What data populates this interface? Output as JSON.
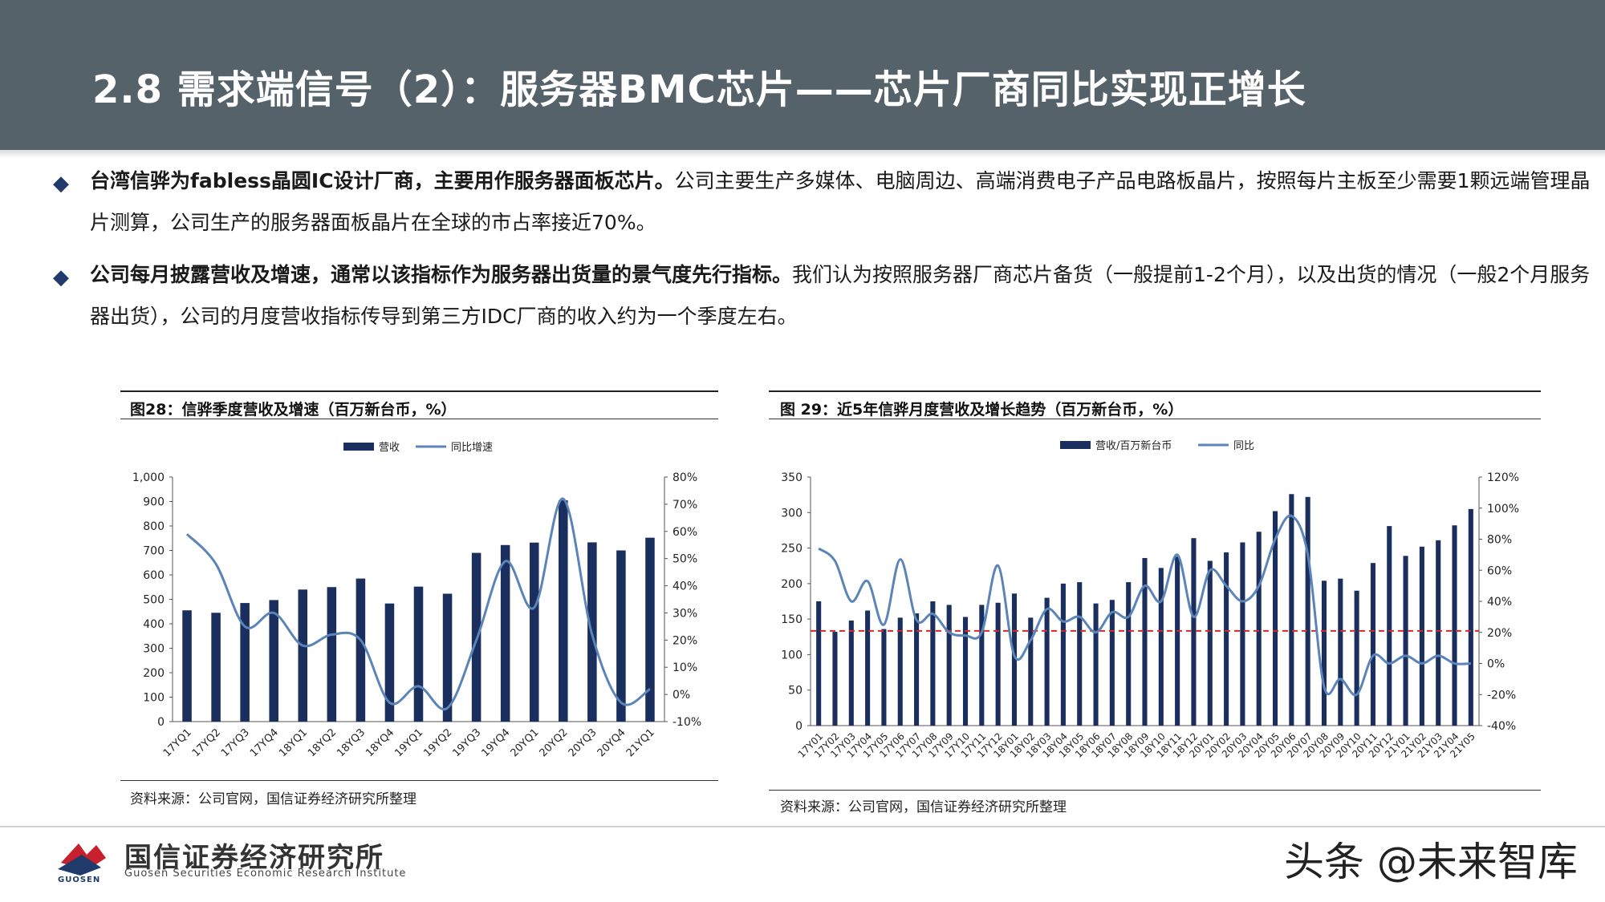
{
  "header": {
    "title": "2.8 需求端信号（2）：服务器BMC芯片——芯片厂商同比实现正增长"
  },
  "bullets": [
    {
      "bold": "台湾信骅为fabless晶圆IC设计厂商，主要用作服务器面板芯片。",
      "text": "公司主要生产多媒体、电脑周边、高端消费电子产品电路板晶片，按照每片主板至少需要1颗远端管理晶片测算，公司生产的服务器面板晶片在全球的市占率接近70%。"
    },
    {
      "bold": "公司每月披露营收及增速，通常以该指标作为服务器出货量的景气度先行指标。",
      "text": "我们认为按照服务器厂商芯片备货（一般提前1-2个月），以及出货的情况（一般2个月服务器出货），公司的月度营收指标传导到第三方IDC厂商的收入约为一个季度左右。"
    }
  ],
  "colors": {
    "header_bg": "#566269",
    "bar": "#1b2f5e",
    "line": "#5b84b8",
    "ref_line": "#d62828",
    "bullet": "#1f3a6b"
  },
  "figures": [
    {
      "title": "图28：信骅季度营收及增速（百万新台币，%）",
      "source": "资料来源：公司官网，国信证券经济研究所整理"
    },
    {
      "title": "图 29：近5年信骅月度营收及增长趋势（百万新台币，%）",
      "source": "资料来源：公司官网，国信证券经济研究所整理"
    }
  ],
  "chart_data": [
    {
      "type": "bar",
      "combo": "bar+line (dual axis)",
      "legend": [
        "营收",
        "同比增速"
      ],
      "legend_position": "top-center",
      "categories": [
        "17YQ1",
        "17YQ2",
        "17YQ3",
        "17YQ4",
        "18YQ1",
        "18YQ2",
        "18YQ3",
        "18YQ4",
        "19YQ1",
        "19YQ2",
        "19YQ3",
        "19YQ4",
        "20YQ1",
        "20YQ2",
        "20YQ3",
        "20YQ4",
        "21YQ1"
      ],
      "series": [
        {
          "name": "营收",
          "axis": "left",
          "type": "bar",
          "values": [
            455,
            445,
            485,
            497,
            540,
            550,
            585,
            483,
            552,
            523,
            690,
            722,
            732,
            905,
            733,
            700,
            752
          ]
        },
        {
          "name": "同比增速",
          "axis": "right",
          "type": "line",
          "values": [
            59,
            48,
            25,
            30,
            18,
            22,
            20,
            -3,
            3,
            -5,
            20,
            49,
            32,
            72,
            22,
            -3,
            2
          ]
        }
      ],
      "y_left": {
        "min": 0,
        "max": 1000,
        "ticks": [
          "0",
          "100",
          "200",
          "300",
          "400",
          "500",
          "600",
          "700",
          "800",
          "900",
          "1,000"
        ]
      },
      "y_right": {
        "min": -10,
        "max": 80,
        "ticks": [
          "-10%",
          "0%",
          "10%",
          "20%",
          "30%",
          "40%",
          "50%",
          "60%",
          "70%",
          "80%"
        ]
      },
      "grid": false
    },
    {
      "type": "bar",
      "combo": "bar+line (dual axis) with dashed reference line",
      "legend": [
        "营收/百万新台币",
        "同比"
      ],
      "legend_position": "top-center",
      "categories": [
        "17Y01",
        "17Y02",
        "17Y03",
        "17Y04",
        "17Y05",
        "17Y06",
        "17Y07",
        "17Y08",
        "17Y09",
        "17Y10",
        "17Y11",
        "17Y12",
        "18Y01",
        "18Y02",
        "18Y03",
        "18Y04",
        "18Y05",
        "18Y06",
        "18Y07",
        "18Y08",
        "18Y09",
        "18Y10",
        "18Y11",
        "18Y12",
        "20Y01",
        "20Y02",
        "20Y03",
        "20Y04",
        "20Y05",
        "20Y06",
        "20Y07",
        "20Y08",
        "20Y09",
        "20Y10",
        "20Y11",
        "20Y12",
        "21Y01",
        "21Y02",
        "21Y03",
        "21Y04",
        "21Y05"
      ],
      "series": [
        {
          "name": "营收/百万新台币",
          "axis": "left",
          "type": "bar",
          "values": [
            175,
            132,
            148,
            162,
            136,
            152,
            158,
            175,
            170,
            153,
            170,
            173,
            186,
            152,
            180,
            200,
            202,
            172,
            177,
            202,
            236,
            222,
            238,
            264,
            232,
            244,
            258,
            273,
            302,
            326,
            322,
            204,
            207,
            190,
            229,
            281,
            239,
            252,
            261,
            282,
            305
          ]
        },
        {
          "name": "同比",
          "axis": "right",
          "type": "line",
          "values": [
            74,
            66,
            40,
            53,
            25,
            67,
            28,
            32,
            20,
            18,
            20,
            63,
            5,
            15,
            35,
            27,
            30,
            20,
            33,
            30,
            50,
            40,
            70,
            30,
            60,
            50,
            40,
            50,
            80,
            95,
            70,
            -15,
            -10,
            -20,
            5,
            0,
            5,
            0,
            5,
            0,
            0
          ]
        }
      ],
      "reference_line": {
        "axis": "right",
        "value": 21,
        "style": "dashed"
      },
      "y_left": {
        "min": 0,
        "max": 350,
        "ticks": [
          "0",
          "50",
          "100",
          "150",
          "200",
          "250",
          "300",
          "350"
        ]
      },
      "y_right": {
        "min": -40,
        "max": 120,
        "ticks": [
          "-40%",
          "-20%",
          "0%",
          "20%",
          "40%",
          "60%",
          "80%",
          "100%",
          "120%"
        ]
      },
      "grid": false
    }
  ],
  "footer": {
    "logo_name": "国信证券经济研究所",
    "logo_sub": "Guosen Securities Economic Research Institute",
    "logo_code": "GUOSEN",
    "watermark": "头条 @未来智库"
  }
}
